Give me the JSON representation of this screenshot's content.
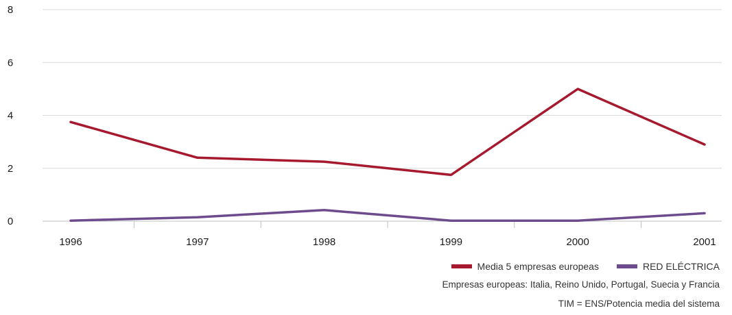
{
  "chart_data": {
    "type": "line",
    "categories": [
      "1996",
      "1997",
      "1998",
      "1999",
      "2000",
      "2001"
    ],
    "series": [
      {
        "name": "Media 5 empresas europeas",
        "values": [
          3.75,
          2.4,
          2.25,
          1.75,
          5.0,
          2.9
        ],
        "color": "#a6192e"
      },
      {
        "name": "RED ELÉCTRICA",
        "values": [
          0.02,
          0.15,
          0.42,
          0.02,
          0.02,
          0.3
        ],
        "color": "#6d4c8e"
      }
    ],
    "yticks": [
      "0",
      "2",
      "4",
      "6",
      "8"
    ],
    "ylim": [
      0,
      8
    ],
    "grid": true,
    "legend_position": "bottom-right"
  },
  "notes": {
    "countries": "Empresas europeas: Italia, Reino Unido, Portugal, Suecia y Francia",
    "formula": "TIM = ENS/Potencia media del sistema"
  }
}
